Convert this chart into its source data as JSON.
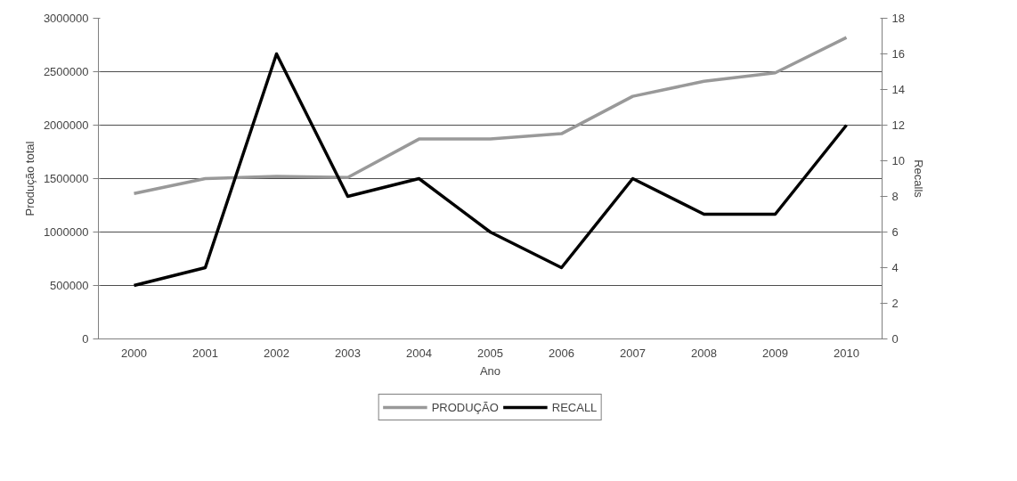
{
  "chart_data": {
    "type": "line",
    "xlabel": "Ano",
    "ylabel": "Produção total",
    "y2label": "Recalls",
    "categories": [
      "2000",
      "2001",
      "2002",
      "2003",
      "2004",
      "2005",
      "2006",
      "2007",
      "2008",
      "2009",
      "2010"
    ],
    "series": [
      {
        "name": "PRODUÇÃO",
        "color": "#999999",
        "values": [
          1360000,
          1500000,
          1520000,
          1510000,
          1870000,
          1870000,
          1920000,
          2270000,
          2410000,
          2490000,
          2820000
        ]
      },
      {
        "name": "RECALL",
        "color": "#000000",
        "axis": "y2",
        "values": [
          3,
          4,
          16,
          8,
          9,
          6,
          4,
          9,
          7,
          7,
          12
        ]
      }
    ],
    "ylim": [
      0,
      3000000
    ],
    "yticks": [
      0,
      500000,
      1000000,
      1500000,
      2000000,
      2500000,
      3000000
    ],
    "y2lim": [
      0,
      18
    ],
    "y2ticks": [
      0,
      2,
      4,
      6,
      8,
      10,
      12,
      14,
      16,
      18
    ],
    "grid": "y",
    "legend": "bottom",
    "marker": "none",
    "line_style": "solid"
  }
}
